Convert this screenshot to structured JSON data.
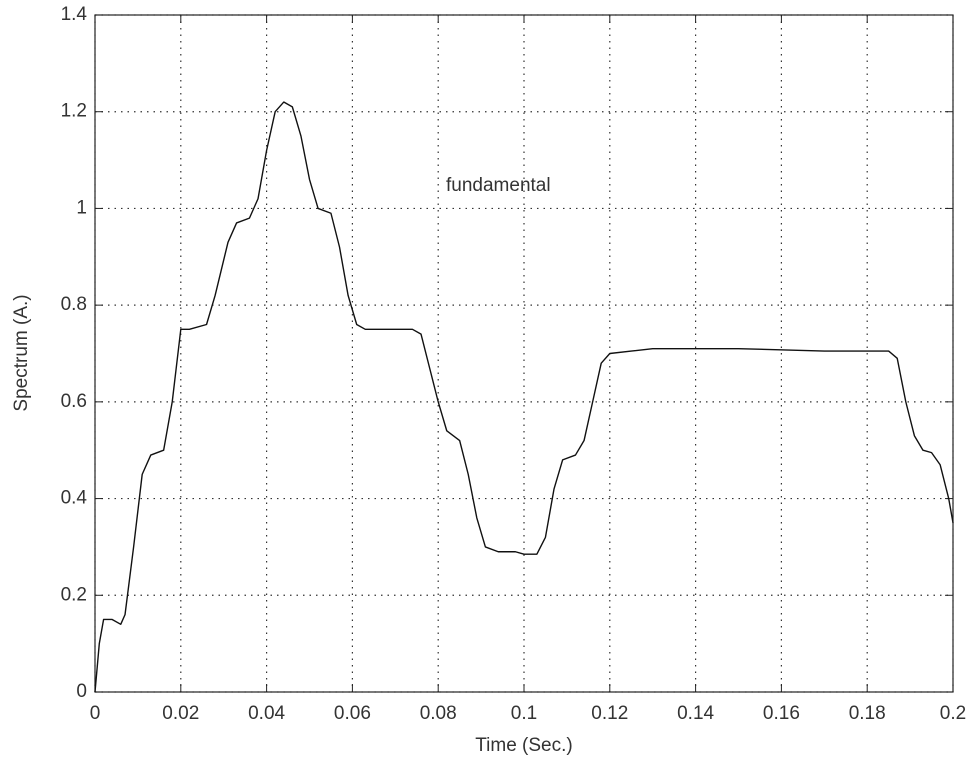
{
  "chart_data": {
    "type": "line",
    "x_label": "Time (Sec.)",
    "y_label": "Spectrum (A.)",
    "annotation": "fundamental",
    "x": [
      0,
      0.001,
      0.002,
      0.004,
      0.006,
      0.007,
      0.009,
      0.011,
      0.013,
      0.016,
      0.018,
      0.02,
      0.022,
      0.026,
      0.028,
      0.031,
      0.033,
      0.036,
      0.038,
      0.04,
      0.042,
      0.044,
      0.046,
      0.048,
      0.05,
      0.052,
      0.055,
      0.057,
      0.059,
      0.061,
      0.063,
      0.07,
      0.074,
      0.076,
      0.078,
      0.08,
      0.082,
      0.085,
      0.087,
      0.089,
      0.091,
      0.094,
      0.098,
      0.1,
      0.103,
      0.105,
      0.107,
      0.109,
      0.112,
      0.114,
      0.116,
      0.118,
      0.12,
      0.125,
      0.13,
      0.15,
      0.17,
      0.185,
      0.187,
      0.189,
      0.191,
      0.193,
      0.195,
      0.197,
      0.199,
      0.2
    ],
    "values": [
      0,
      0.1,
      0.15,
      0.15,
      0.14,
      0.16,
      0.3,
      0.45,
      0.49,
      0.5,
      0.6,
      0.75,
      0.75,
      0.76,
      0.82,
      0.93,
      0.97,
      0.98,
      1.02,
      1.12,
      1.2,
      1.22,
      1.21,
      1.15,
      1.06,
      1.0,
      0.99,
      0.92,
      0.82,
      0.76,
      0.75,
      0.75,
      0.75,
      0.74,
      0.67,
      0.6,
      0.54,
      0.52,
      0.45,
      0.36,
      0.3,
      0.29,
      0.29,
      0.285,
      0.285,
      0.32,
      0.42,
      0.48,
      0.49,
      0.52,
      0.6,
      0.68,
      0.7,
      0.705,
      0.71,
      0.71,
      0.705,
      0.705,
      0.69,
      0.6,
      0.53,
      0.5,
      0.495,
      0.47,
      0.4,
      0.35
    ],
    "color": "#111111",
    "xlim": [
      0,
      0.2
    ],
    "xticks": [
      0,
      0.02,
      0.04,
      0.06,
      0.08,
      0.1,
      0.12,
      0.14,
      0.16,
      0.18,
      0.2
    ],
    "ylim": [
      0,
      1.4
    ],
    "yticks": [
      0,
      0.2,
      0.4,
      0.6,
      0.8,
      1,
      1.2,
      1.4
    ],
    "grid": true
  }
}
